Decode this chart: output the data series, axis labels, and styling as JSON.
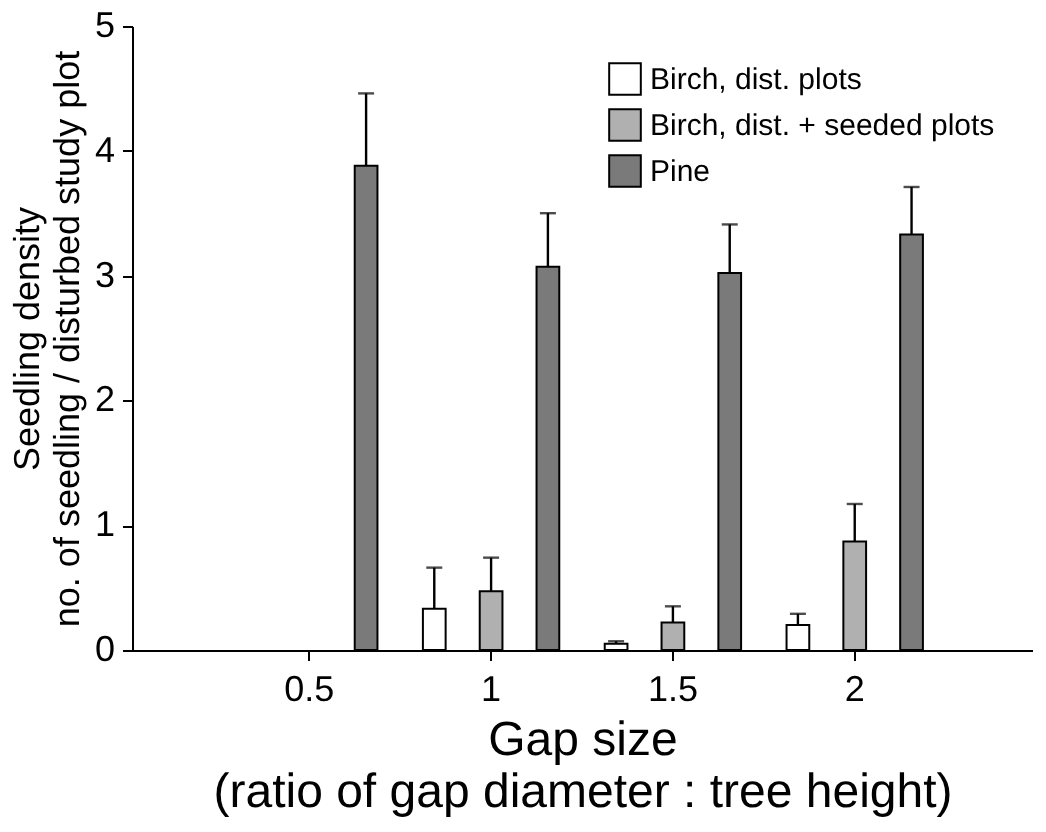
{
  "chart_data": {
    "type": "bar",
    "xlabel": "Gap size\n(ratio of gap diameter : tree height)",
    "ylabel": "Seedling density\nno. of seedling / disturbed study plot",
    "categories": [
      "0.5",
      "1",
      "1.5",
      "2"
    ],
    "series": [
      {
        "name": "Birch, dist. plots",
        "color": "#ffffff",
        "values": [
          null,
          0.33,
          0.05,
          0.2
        ],
        "errors": [
          null,
          [
            0.33,
            0.66
          ],
          [
            0.05,
            0.07
          ],
          [
            0.2,
            0.29
          ]
        ]
      },
      {
        "name": "Birch, dist. + seeded plots",
        "color": "#b0b0b0",
        "values": [
          null,
          0.47,
          0.22,
          0.87
        ],
        "errors": [
          null,
          [
            0.47,
            0.74
          ],
          [
            0.22,
            0.35
          ],
          [
            0.87,
            1.17
          ]
        ]
      },
      {
        "name": "Pine",
        "color": "#7a7a7a",
        "values": [
          3.88,
          3.07,
          3.02,
          3.33
        ],
        "errors": [
          [
            3.88,
            4.46
          ],
          [
            3.07,
            3.5
          ],
          [
            3.02,
            3.41
          ],
          [
            3.33,
            3.71
          ]
        ]
      }
    ],
    "ylim": [
      0,
      5
    ],
    "yticks": [
      0,
      1,
      2,
      3,
      4,
      5
    ],
    "grid": false,
    "legend": "top right"
  }
}
